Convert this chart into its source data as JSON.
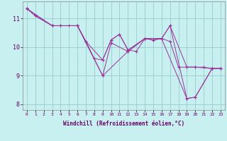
{
  "xlabel": "Windchill (Refroidissement éolien,°C)",
  "background_color": "#c8f0f0",
  "line_color": "#993399",
  "grid_color": "#99cccc",
  "xlim": [
    -0.5,
    23.5
  ],
  "ylim": [
    7.8,
    11.6
  ],
  "yticks": [
    8,
    9,
    10,
    11
  ],
  "xticks": [
    0,
    1,
    2,
    3,
    4,
    5,
    6,
    7,
    8,
    9,
    10,
    11,
    12,
    13,
    14,
    15,
    16,
    17,
    18,
    19,
    20,
    21,
    22,
    23
  ],
  "lines": [
    {
      "x": [
        0,
        1,
        3,
        4,
        5,
        6,
        7,
        8,
        9,
        10,
        11,
        12,
        13,
        14,
        15,
        16,
        17,
        18,
        19,
        20,
        21,
        22,
        23
      ],
      "y": [
        11.35,
        11.1,
        10.75,
        10.75,
        10.75,
        10.75,
        10.2,
        9.6,
        9.55,
        10.25,
        10.45,
        9.9,
        9.85,
        10.3,
        10.25,
        10.3,
        10.2,
        9.3,
        9.3,
        9.3,
        9.3,
        9.25,
        9.25
      ]
    },
    {
      "x": [
        0,
        1,
        3,
        6,
        7,
        9,
        10,
        11,
        12,
        14,
        15,
        16,
        17,
        19,
        20,
        22,
        23
      ],
      "y": [
        11.35,
        11.1,
        10.75,
        10.75,
        10.2,
        9.55,
        10.25,
        10.45,
        9.9,
        10.3,
        10.25,
        10.3,
        10.75,
        9.3,
        9.3,
        9.25,
        9.25
      ]
    },
    {
      "x": [
        0,
        3,
        4,
        6,
        9,
        10,
        12,
        14,
        16,
        17,
        19,
        20,
        22,
        23
      ],
      "y": [
        11.35,
        10.75,
        10.75,
        10.75,
        9.0,
        10.15,
        9.85,
        10.3,
        10.3,
        10.75,
        8.2,
        8.25,
        9.25,
        9.25
      ]
    },
    {
      "x": [
        0,
        1,
        3,
        6,
        9,
        12,
        14,
        16,
        19,
        20,
        22,
        23
      ],
      "y": [
        11.35,
        11.1,
        10.75,
        10.75,
        9.0,
        9.85,
        10.3,
        10.3,
        8.2,
        8.25,
        9.25,
        9.25
      ]
    }
  ]
}
